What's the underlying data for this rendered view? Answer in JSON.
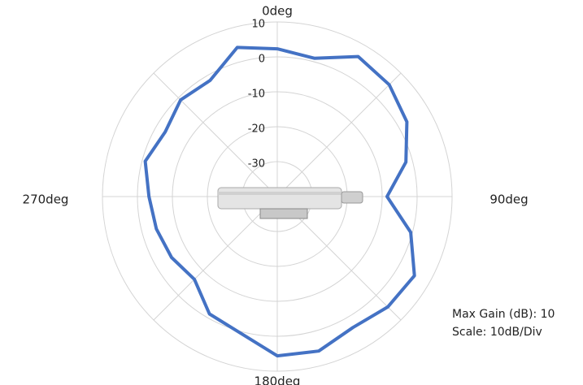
{
  "chart_data": {
    "type": "polar",
    "theta": [
      0,
      15,
      30,
      45,
      60,
      75,
      90,
      105,
      120,
      135,
      150,
      165,
      180,
      195,
      210,
      225,
      240,
      255,
      270,
      285,
      300,
      315,
      330,
      345
    ],
    "values": [
      2.3,
      1.0,
      6.3,
      5.3,
      2.8,
      -1.9,
      -8.6,
      -0.5,
      5.3,
      4.7,
      3.3,
      5.8,
      5.6,
      0.5,
      -1.2,
      -6.5,
      -5.1,
      -4.2,
      -3.3,
      -0.9,
      -3.0,
      -0.9,
      -1.6,
      4.2
    ],
    "color": "#4472c4",
    "rlim": [
      -40,
      10
    ],
    "rticks": [
      -30,
      -20,
      -10,
      0,
      10
    ],
    "thetagrid": [
      0,
      45,
      90,
      135,
      180,
      225,
      270,
      315
    ],
    "thetaticks": [
      {
        "value": 0,
        "label": "0deg"
      },
      {
        "value": 90,
        "label": "90deg"
      },
      {
        "value": 180,
        "label": "180deg"
      },
      {
        "value": 270,
        "label": "270deg"
      }
    ],
    "annotations": [
      "Max Gain (dB): 10",
      "Scale: 10dB/Div"
    ]
  }
}
